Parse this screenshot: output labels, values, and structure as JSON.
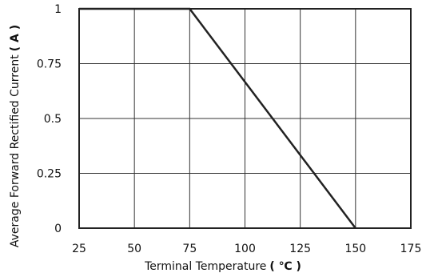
{
  "chart_data": {
    "type": "line",
    "xlabel_prefix": "Terminal Temperature",
    "xlabel_unit": "( ℃ )",
    "ylabel_prefix": "Average Forward Rectified Current",
    "ylabel_unit": "( A )",
    "xlim": [
      25,
      175
    ],
    "ylim": [
      0,
      1
    ],
    "x_ticks": [
      25,
      50,
      75,
      100,
      125,
      150,
      175
    ],
    "x_tick_labels": [
      "25",
      "50",
      "75",
      "100",
      "125",
      "150",
      "175"
    ],
    "y_ticks": [
      0,
      0.25,
      0.5,
      0.75,
      1
    ],
    "y_tick_labels": [
      "0",
      "0.25",
      "0.5",
      "0.75",
      "1"
    ],
    "grid": true,
    "series": [
      {
        "x": [
          25,
          75,
          150
        ],
        "y": [
          1,
          1,
          0
        ]
      }
    ]
  }
}
